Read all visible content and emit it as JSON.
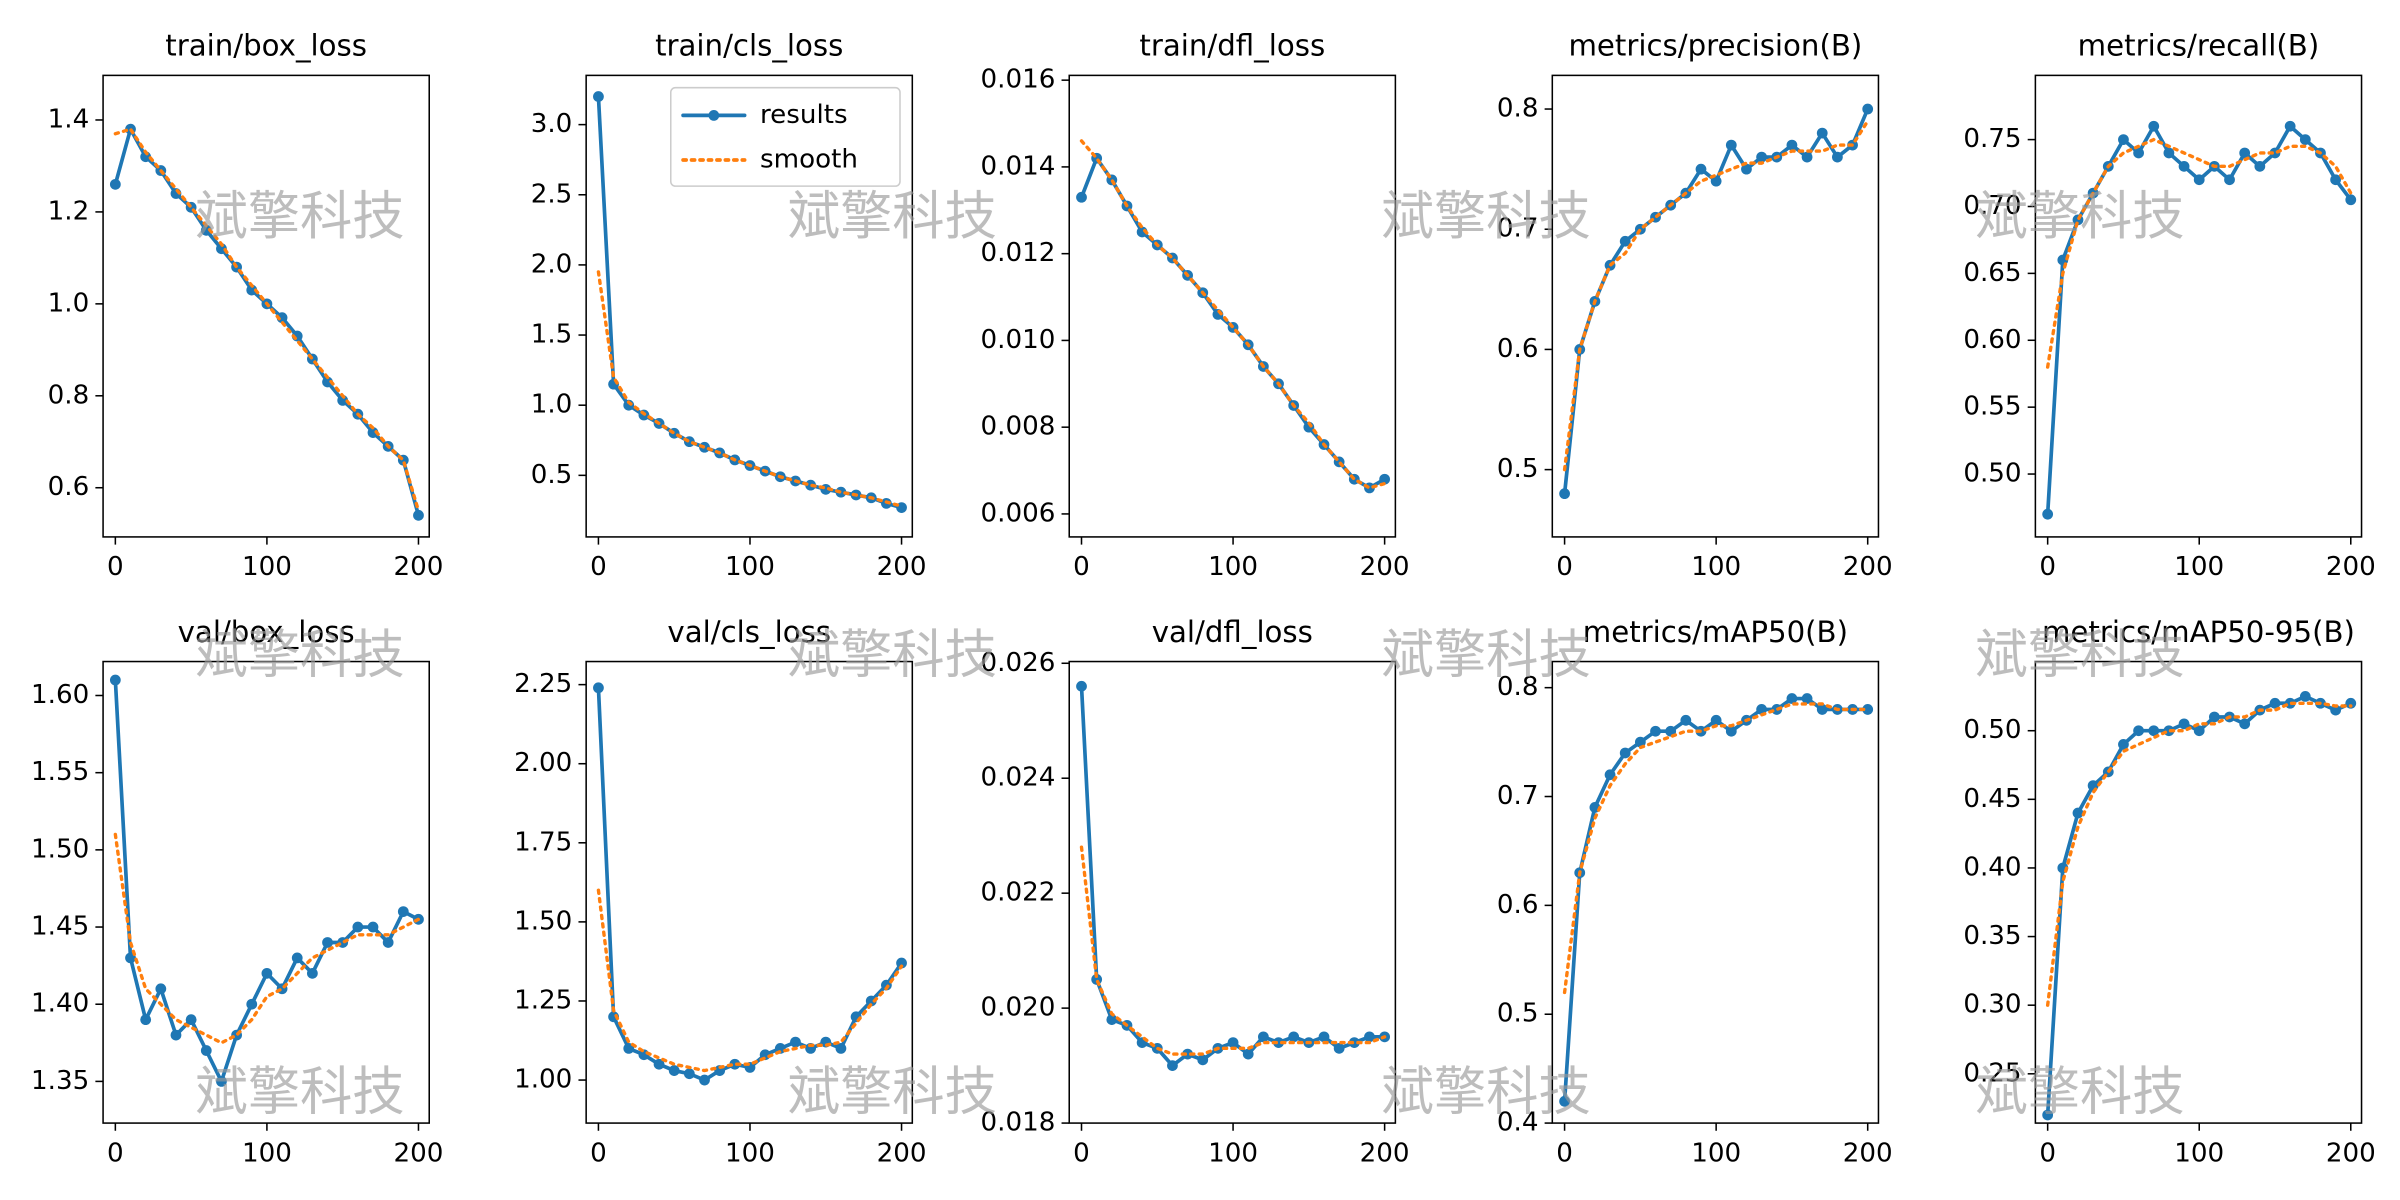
{
  "watermark": "斌擎科技",
  "chart_data": [
    {
      "type": "line",
      "title": "train/box_loss",
      "x": [
        0,
        10,
        20,
        30,
        40,
        50,
        60,
        70,
        80,
        90,
        100,
        110,
        120,
        130,
        140,
        150,
        160,
        170,
        180,
        190,
        200
      ],
      "xlim": [
        -8.1,
        207.1
      ],
      "xticks": [
        0,
        100,
        200
      ],
      "ylim": [
        0.493,
        1.497
      ],
      "yticks": [
        0.6,
        0.8,
        {
          "value": 1.0,
          "label": "1.0"
        },
        1.2,
        1.4
      ],
      "series": [
        {
          "name": "results",
          "color": "#1f77b4",
          "values": [
            1.26,
            1.38,
            1.32,
            1.29,
            1.24,
            1.21,
            1.16,
            1.12,
            1.08,
            1.03,
            1.0,
            0.97,
            0.93,
            0.88,
            0.83,
            0.79,
            0.76,
            0.72,
            0.69,
            0.66,
            0.54
          ]
        },
        {
          "name": "smooth",
          "color": "#ff7f0e",
          "values": [
            1.37,
            1.38,
            1.33,
            1.29,
            1.25,
            1.21,
            1.17,
            1.13,
            1.08,
            1.04,
            1.0,
            0.96,
            0.92,
            0.88,
            0.84,
            0.8,
            0.76,
            0.73,
            0.69,
            0.66,
            0.55
          ]
        }
      ]
    },
    {
      "type": "line",
      "title": "train/cls_loss",
      "legend": "upper right",
      "x": [
        0,
        10,
        20,
        30,
        40,
        50,
        60,
        70,
        80,
        90,
        100,
        110,
        120,
        130,
        140,
        150,
        160,
        170,
        180,
        190,
        200
      ],
      "xlim": [
        -8.1,
        207.1
      ],
      "xticks": [
        0,
        100,
        200
      ],
      "ylim": [
        0.061,
        3.351
      ],
      "yticks": [
        0.5,
        {
          "value": 1.0,
          "label": "1.0"
        },
        1.5,
        {
          "value": 2.0,
          "label": "2.0"
        },
        2.5,
        {
          "value": 3.0,
          "label": "3.0"
        }
      ],
      "series": [
        {
          "name": "results",
          "color": "#1f77b4",
          "values": [
            3.2,
            1.15,
            1.0,
            0.93,
            0.87,
            0.8,
            0.74,
            0.7,
            0.66,
            0.61,
            0.57,
            0.53,
            0.49,
            0.46,
            0.43,
            0.4,
            0.38,
            0.36,
            0.34,
            0.3,
            0.27
          ]
        },
        {
          "name": "smooth",
          "color": "#ff7f0e",
          "values": [
            1.95,
            1.2,
            1.02,
            0.94,
            0.87,
            0.8,
            0.74,
            0.7,
            0.66,
            0.61,
            0.57,
            0.53,
            0.49,
            0.46,
            0.43,
            0.41,
            0.38,
            0.36,
            0.34,
            0.31,
            0.28
          ]
        }
      ]
    },
    {
      "type": "line",
      "title": "train/dfl_loss",
      "x": [
        0,
        10,
        20,
        30,
        40,
        50,
        60,
        70,
        80,
        90,
        100,
        110,
        120,
        130,
        140,
        150,
        160,
        170,
        180,
        190,
        200
      ],
      "xlim": [
        -8.1,
        207.1
      ],
      "xticks": [
        0,
        100,
        200
      ],
      "ylim": [
        0.00547,
        0.01611
      ],
      "yticks": [
        0.006,
        0.008,
        {
          "value": 0.01,
          "label": "0.010"
        },
        0.012,
        0.014,
        0.016
      ],
      "series": [
        {
          "name": "results",
          "color": "#1f77b4",
          "values": [
            0.0133,
            0.0142,
            0.0137,
            0.0131,
            0.0125,
            0.0122,
            0.0119,
            0.0115,
            0.0111,
            0.0106,
            0.0103,
            0.0099,
            0.0094,
            0.009,
            0.0085,
            0.008,
            0.0076,
            0.0072,
            0.0068,
            0.0066,
            0.0068
          ]
        },
        {
          "name": "smooth",
          "color": "#ff7f0e",
          "values": [
            0.0146,
            0.0142,
            0.0137,
            0.0131,
            0.0126,
            0.0122,
            0.0119,
            0.0115,
            0.0111,
            0.0107,
            0.0103,
            0.0099,
            0.0094,
            0.009,
            0.0085,
            0.0081,
            0.0076,
            0.0072,
            0.0068,
            0.0066,
            0.0067
          ]
        }
      ]
    },
    {
      "type": "line",
      "title": "metrics/precision(B)",
      "x": [
        0,
        10,
        20,
        30,
        40,
        50,
        60,
        70,
        80,
        90,
        100,
        110,
        120,
        130,
        140,
        150,
        160,
        170,
        180,
        190,
        200
      ],
      "xlim": [
        -8.1,
        207.1
      ],
      "xticks": [
        0,
        100,
        200
      ],
      "ylim": [
        0.444,
        0.828
      ],
      "yticks": [
        0.5,
        0.6,
        0.7,
        0.8
      ],
      "series": [
        {
          "name": "results",
          "color": "#1f77b4",
          "values": [
            0.48,
            0.6,
            0.64,
            0.67,
            0.69,
            0.7,
            0.71,
            0.72,
            0.73,
            0.75,
            0.74,
            0.77,
            0.75,
            0.76,
            0.76,
            0.77,
            0.76,
            0.78,
            0.76,
            0.77,
            0.8
          ]
        },
        {
          "name": "smooth",
          "color": "#ff7f0e",
          "values": [
            0.5,
            0.6,
            0.64,
            0.67,
            0.68,
            0.7,
            0.71,
            0.72,
            0.73,
            0.74,
            0.745,
            0.75,
            0.755,
            0.755,
            0.76,
            0.765,
            0.765,
            0.765,
            0.77,
            0.77,
            0.79
          ]
        }
      ]
    },
    {
      "type": "line",
      "title": "metrics/recall(B)",
      "x": [
        0,
        10,
        20,
        30,
        40,
        50,
        60,
        70,
        80,
        90,
        100,
        110,
        120,
        130,
        140,
        150,
        160,
        170,
        180,
        190,
        200
      ],
      "xlim": [
        -8.1,
        207.1
      ],
      "xticks": [
        0,
        100,
        200
      ],
      "ylim": [
        0.453,
        0.798
      ],
      "yticks": [
        {
          "value": 0.5,
          "label": "0.50"
        },
        0.55,
        {
          "value": 0.6,
          "label": "0.60"
        },
        0.65,
        {
          "value": 0.7,
          "label": "0.70"
        },
        0.75
      ],
      "series": [
        {
          "name": "results",
          "color": "#1f77b4",
          "values": [
            0.47,
            0.66,
            0.69,
            0.71,
            0.73,
            0.75,
            0.74,
            0.76,
            0.74,
            0.73,
            0.72,
            0.73,
            0.72,
            0.74,
            0.73,
            0.74,
            0.76,
            0.75,
            0.74,
            0.72,
            0.705
          ]
        },
        {
          "name": "smooth",
          "color": "#ff7f0e",
          "values": [
            0.58,
            0.65,
            0.69,
            0.71,
            0.73,
            0.74,
            0.745,
            0.75,
            0.745,
            0.74,
            0.735,
            0.73,
            0.73,
            0.735,
            0.74,
            0.74,
            0.745,
            0.745,
            0.74,
            0.73,
            0.71
          ]
        }
      ]
    },
    {
      "type": "line",
      "title": "val/box_loss",
      "x": [
        0,
        10,
        20,
        30,
        40,
        50,
        60,
        70,
        80,
        90,
        100,
        110,
        120,
        130,
        140,
        150,
        160,
        170,
        180,
        190,
        200
      ],
      "xlim": [
        -8.1,
        207.1
      ],
      "xticks": [
        0,
        100,
        200
      ],
      "ylim": [
        1.323,
        1.622
      ],
      "yticks": [
        1.35,
        {
          "value": 1.4,
          "label": "1.40"
        },
        1.45,
        {
          "value": 1.5,
          "label": "1.50"
        },
        1.55,
        {
          "value": 1.6,
          "label": "1.60"
        }
      ],
      "series": [
        {
          "name": "results",
          "color": "#1f77b4",
          "values": [
            1.61,
            1.43,
            1.39,
            1.41,
            1.38,
            1.39,
            1.37,
            1.35,
            1.38,
            1.4,
            1.42,
            1.41,
            1.43,
            1.42,
            1.44,
            1.44,
            1.45,
            1.45,
            1.44,
            1.46,
            1.455
          ]
        },
        {
          "name": "smooth",
          "color": "#ff7f0e",
          "values": [
            1.51,
            1.44,
            1.41,
            1.4,
            1.39,
            1.385,
            1.38,
            1.375,
            1.38,
            1.39,
            1.405,
            1.41,
            1.42,
            1.43,
            1.435,
            1.44,
            1.445,
            1.445,
            1.445,
            1.45,
            1.455
          ]
        }
      ]
    },
    {
      "type": "line",
      "title": "val/cls_loss",
      "x": [
        0,
        10,
        20,
        30,
        40,
        50,
        60,
        70,
        80,
        90,
        100,
        110,
        120,
        130,
        140,
        150,
        160,
        170,
        180,
        190,
        200
      ],
      "xlim": [
        -8.1,
        207.1
      ],
      "xticks": [
        0,
        100,
        200
      ],
      "ylim": [
        0.864,
        2.323
      ],
      "yticks": [
        {
          "value": 1.0,
          "label": "1.00"
        },
        1.25,
        {
          "value": 1.5,
          "label": "1.50"
        },
        1.75,
        {
          "value": 2.0,
          "label": "2.00"
        },
        2.25
      ],
      "series": [
        {
          "name": "results",
          "color": "#1f77b4",
          "values": [
            2.24,
            1.2,
            1.1,
            1.08,
            1.05,
            1.03,
            1.02,
            1.0,
            1.03,
            1.05,
            1.04,
            1.08,
            1.1,
            1.12,
            1.1,
            1.12,
            1.1,
            1.2,
            1.25,
            1.3,
            1.37
          ]
        },
        {
          "name": "smooth",
          "color": "#ff7f0e",
          "values": [
            1.6,
            1.22,
            1.12,
            1.09,
            1.07,
            1.05,
            1.04,
            1.03,
            1.04,
            1.05,
            1.05,
            1.07,
            1.09,
            1.1,
            1.11,
            1.11,
            1.12,
            1.18,
            1.24,
            1.29,
            1.36
          ]
        }
      ]
    },
    {
      "type": "line",
      "title": "val/dfl_loss",
      "x": [
        0,
        10,
        20,
        30,
        40,
        50,
        60,
        70,
        80,
        90,
        100,
        110,
        120,
        130,
        140,
        150,
        160,
        170,
        180,
        190,
        200
      ],
      "xlim": [
        -8.1,
        207.1
      ],
      "xticks": [
        0,
        100,
        200
      ],
      "ylim": [
        0.018,
        0.02603
      ],
      "yticks": [
        0.018,
        {
          "value": 0.02,
          "label": "0.020"
        },
        0.022,
        0.024,
        0.026
      ],
      "series": [
        {
          "name": "results",
          "color": "#1f77b4",
          "values": [
            0.0256,
            0.0205,
            0.0198,
            0.0197,
            0.0194,
            0.0193,
            0.019,
            0.0192,
            0.0191,
            0.0193,
            0.0194,
            0.0192,
            0.0195,
            0.0194,
            0.0195,
            0.0194,
            0.0195,
            0.0193,
            0.0194,
            0.0195,
            0.0195
          ]
        },
        {
          "name": "smooth",
          "color": "#ff7f0e",
          "values": [
            0.0228,
            0.0205,
            0.0199,
            0.0197,
            0.0195,
            0.0193,
            0.0192,
            0.0192,
            0.0192,
            0.0193,
            0.0193,
            0.0193,
            0.0194,
            0.0194,
            0.0194,
            0.0194,
            0.0194,
            0.0194,
            0.0194,
            0.0194,
            0.0195
          ]
        }
      ]
    },
    {
      "type": "line",
      "title": "metrics/mAP50(B)",
      "x": [
        0,
        10,
        20,
        30,
        40,
        50,
        60,
        70,
        80,
        90,
        100,
        110,
        120,
        130,
        140,
        150,
        160,
        170,
        180,
        190,
        200
      ],
      "xlim": [
        -8.1,
        207.1
      ],
      "xticks": [
        0,
        100,
        200
      ],
      "ylim": [
        0.4,
        0.824
      ],
      "yticks": [
        0.4,
        0.5,
        0.6,
        0.7,
        0.8
      ],
      "series": [
        {
          "name": "results",
          "color": "#1f77b4",
          "values": [
            0.42,
            0.63,
            0.69,
            0.72,
            0.74,
            0.75,
            0.76,
            0.76,
            0.77,
            0.76,
            0.77,
            0.76,
            0.77,
            0.78,
            0.78,
            0.79,
            0.79,
            0.78,
            0.78,
            0.78,
            0.78
          ]
        },
        {
          "name": "smooth",
          "color": "#ff7f0e",
          "values": [
            0.52,
            0.63,
            0.68,
            0.71,
            0.73,
            0.745,
            0.75,
            0.755,
            0.76,
            0.76,
            0.765,
            0.765,
            0.77,
            0.775,
            0.78,
            0.785,
            0.785,
            0.785,
            0.78,
            0.78,
            0.78
          ]
        }
      ]
    },
    {
      "type": "line",
      "title": "metrics/mAP50-95(B)",
      "x": [
        0,
        10,
        20,
        30,
        40,
        50,
        60,
        70,
        80,
        90,
        100,
        110,
        120,
        130,
        140,
        150,
        160,
        170,
        180,
        190,
        200
      ],
      "xlim": [
        -8.1,
        207.1
      ],
      "xticks": [
        0,
        100,
        200
      ],
      "ylim": [
        0.2141,
        0.5504
      ],
      "yticks": [
        0.25,
        {
          "value": 0.3,
          "label": "0.30"
        },
        0.35,
        {
          "value": 0.4,
          "label": "0.40"
        },
        0.45,
        {
          "value": 0.5,
          "label": "0.50"
        }
      ],
      "series": [
        {
          "name": "results",
          "color": "#1f77b4",
          "values": [
            0.22,
            0.4,
            0.44,
            0.46,
            0.47,
            0.49,
            0.5,
            0.5,
            0.5,
            0.505,
            0.5,
            0.51,
            0.51,
            0.505,
            0.515,
            0.52,
            0.52,
            0.525,
            0.52,
            0.515,
            0.52
          ]
        },
        {
          "name": "smooth",
          "color": "#ff7f0e",
          "values": [
            0.3,
            0.39,
            0.43,
            0.455,
            0.47,
            0.485,
            0.49,
            0.495,
            0.5,
            0.5,
            0.505,
            0.505,
            0.51,
            0.51,
            0.515,
            0.515,
            0.52,
            0.52,
            0.52,
            0.518,
            0.518
          ]
        }
      ]
    }
  ]
}
